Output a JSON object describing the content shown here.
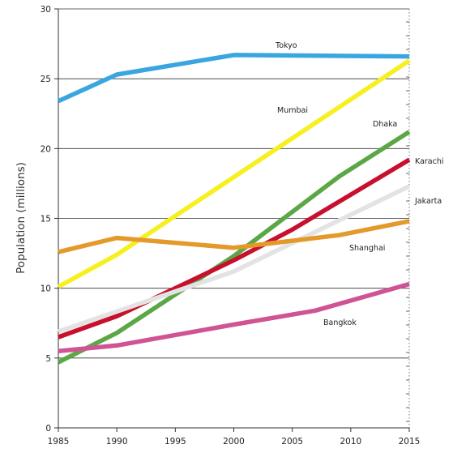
{
  "chart_data": {
    "type": "line",
    "title": "",
    "xlabel": "",
    "ylabel": "Population (millions)",
    "xlim": [
      1985,
      2015
    ],
    "ylim": [
      0,
      30
    ],
    "x_ticks": [
      "1985",
      "1990",
      "1995",
      "2000",
      "2005",
      "2010",
      "2015"
    ],
    "y_ticks": [
      "0",
      "5",
      "10",
      "15",
      "20",
      "25",
      "30"
    ],
    "grid": "horizontal",
    "series": [
      {
        "name": "Tokyo",
        "color": "#3aa6e0",
        "points": [
          [
            1985,
            23.4
          ],
          [
            1990,
            25.3
          ],
          [
            2000,
            26.7
          ],
          [
            2015,
            26.6
          ]
        ]
      },
      {
        "name": "Mumbai",
        "color": "#f5f01e",
        "points": [
          [
            1985,
            10.1
          ],
          [
            1990,
            12.4
          ],
          [
            2015,
            26.3
          ]
        ]
      },
      {
        "name": "Dhaka",
        "color": "#5ba746",
        "points": [
          [
            1985,
            4.7
          ],
          [
            1990,
            6.8
          ],
          [
            2000,
            12.3
          ],
          [
            2009,
            18.0
          ],
          [
            2015,
            21.2
          ]
        ]
      },
      {
        "name": "Karachi",
        "color": "#c8102e",
        "points": [
          [
            1985,
            6.5
          ],
          [
            1990,
            8.0
          ],
          [
            2000,
            12.0
          ],
          [
            2005,
            14.2
          ],
          [
            2015,
            19.2
          ]
        ]
      },
      {
        "name": "Jakarta",
        "color": "#e3e3e3",
        "points": [
          [
            1985,
            6.9
          ],
          [
            2000,
            11.2
          ],
          [
            2015,
            17.3
          ]
        ]
      },
      {
        "name": "Shanghai",
        "color": "#e39a2b",
        "points": [
          [
            1985,
            12.6
          ],
          [
            1990,
            13.6
          ],
          [
            2000,
            12.9
          ],
          [
            2009,
            13.8
          ],
          [
            2015,
            14.8
          ]
        ]
      },
      {
        "name": "Bangkok",
        "color": "#d05494",
        "points": [
          [
            1985,
            5.5
          ],
          [
            1990,
            5.9
          ],
          [
            2000,
            7.4
          ],
          [
            2007,
            8.4
          ],
          [
            2015,
            10.3
          ]
        ]
      }
    ]
  }
}
